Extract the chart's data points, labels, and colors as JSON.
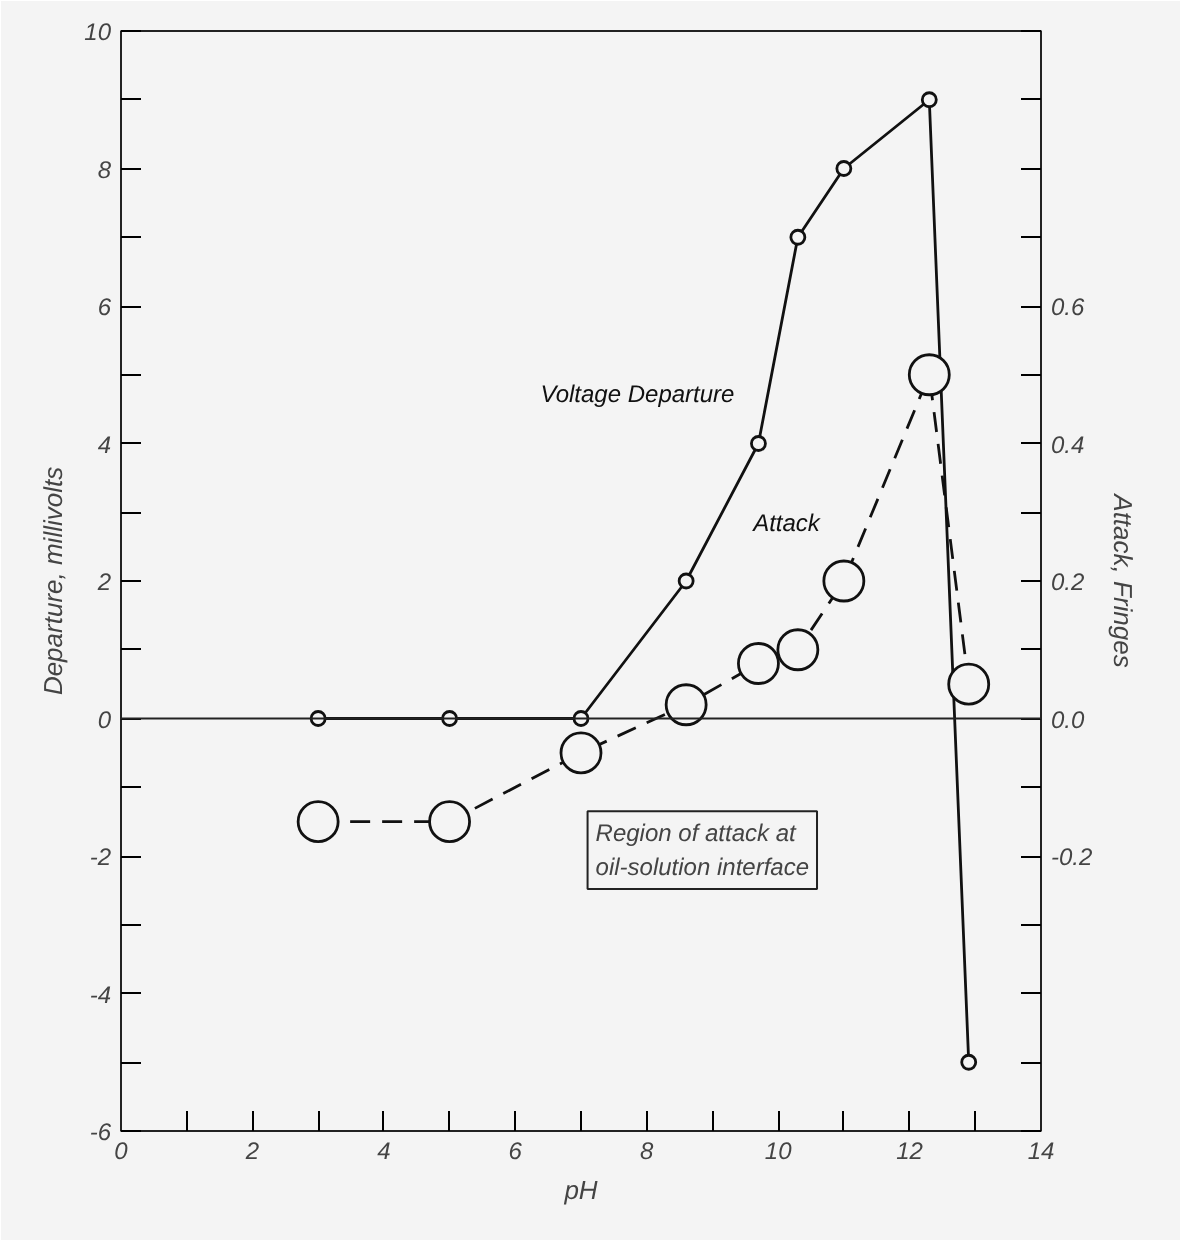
{
  "chart_data": {
    "type": "line",
    "xlabel": "pH",
    "ylabel": "Departure, millivolts",
    "y2label": "Attack, Fringes",
    "xlim": [
      0,
      14
    ],
    "ylim": [
      -6,
      10
    ],
    "y2lim": [
      -0.6,
      1.0
    ],
    "xticks": [
      0,
      {
        "value": 1,
        "label": null
      },
      2,
      {
        "value": 3,
        "label": null
      },
      4,
      {
        "value": 5,
        "label": null
      },
      6,
      {
        "value": 7,
        "label": null
      },
      8,
      {
        "value": 9,
        "label": null
      },
      10,
      {
        "value": 11,
        "label": null
      },
      12,
      {
        "value": 13,
        "label": null
      },
      14
    ],
    "yticks": [
      -6,
      {
        "value": -5,
        "label": null
      },
      -4,
      {
        "value": -3,
        "label": null
      },
      -2,
      {
        "value": -1,
        "label": null
      },
      0,
      {
        "value": 1,
        "label": null
      },
      2,
      {
        "value": 3,
        "label": null
      },
      4,
      {
        "value": 5,
        "label": null
      },
      6,
      {
        "value": 7,
        "label": null
      },
      8,
      {
        "value": 9,
        "label": null
      },
      10
    ],
    "y2ticks": [
      {
        "value": -0.6,
        "label": null
      },
      {
        "value": -0.5,
        "label": null
      },
      {
        "value": -0.4,
        "label": null
      },
      {
        "value": -0.3,
        "label": null
      },
      {
        "value": -0.2,
        "label": "-0.2"
      },
      {
        "value": -0.1,
        "label": null
      },
      {
        "value": 0.0,
        "label": "0.0"
      },
      {
        "value": 0.1,
        "label": null
      },
      {
        "value": 0.2,
        "label": "0.2"
      },
      {
        "value": 0.3,
        "label": null
      },
      {
        "value": 0.4,
        "label": "0.4"
      },
      {
        "value": 0.5,
        "label": null
      },
      {
        "value": 0.6,
        "label": "0.6"
      },
      {
        "value": 0.7,
        "label": null
      },
      {
        "value": 0.8,
        "label": null
      },
      {
        "value": 0.9,
        "label": null
      },
      {
        "value": 1.0,
        "label": null
      }
    ],
    "grid": false,
    "ref_lines": [
      {
        "axis": "y",
        "value": 0,
        "color": "#222222"
      }
    ],
    "annotations": [
      "Region of attack at\noil-solution interface"
    ],
    "series": [
      {
        "name": "Voltage Departure",
        "color": "#111111",
        "marker": "circle",
        "line_style": "solid",
        "x": [
          3,
          5,
          7,
          8.6,
          9.7,
          10.3,
          11,
          12.3,
          12.9
        ],
        "values": [
          0,
          0,
          0,
          2,
          4,
          7,
          8,
          9,
          -5
        ]
      },
      {
        "name": "Attack",
        "color": "#111111",
        "marker": "circle",
        "line_style": "dashed",
        "axis": "y2",
        "x": [
          3,
          5,
          7,
          8.6,
          9.7,
          10.3,
          11,
          12.3,
          12.9
        ],
        "values": [
          -0.15,
          -0.15,
          -0.05,
          0.02,
          0.08,
          0.1,
          0.2,
          0.5,
          0.05
        ]
      }
    ]
  }
}
